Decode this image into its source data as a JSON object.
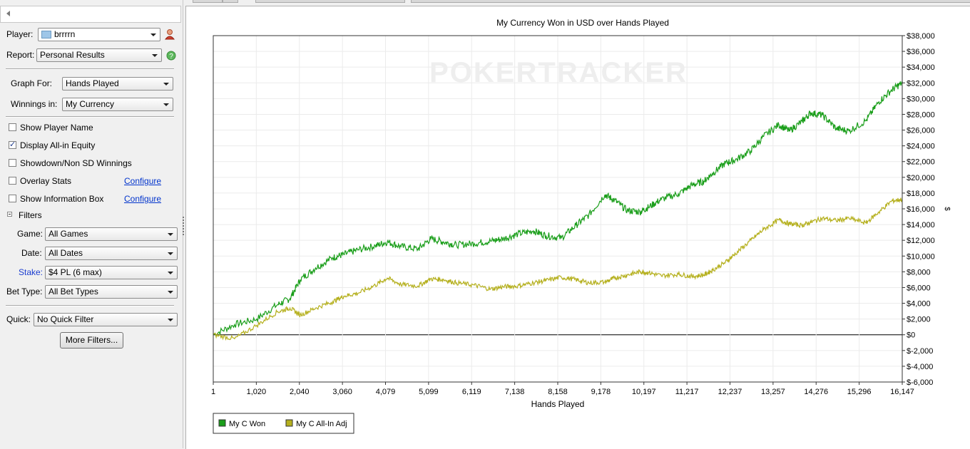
{
  "sidebar": {
    "player_label": "Player:",
    "player_value": "brrrrn",
    "report_label": "Report:",
    "report_value": "Personal Results",
    "graph_for_label": "Graph For:",
    "graph_for_value": "Hands Played",
    "winnings_in_label": "Winnings in:",
    "winnings_in_value": "My Currency",
    "options": [
      {
        "label": "Show Player Name",
        "checked": false
      },
      {
        "label": "Display All-in Equity",
        "checked": true
      },
      {
        "label": "Showdown/Non SD Winnings",
        "checked": false
      },
      {
        "label": "Overlay Stats",
        "checked": false,
        "link": "Configure"
      },
      {
        "label": "Show Information Box",
        "checked": false,
        "link": "Configure"
      }
    ],
    "filters_header": "Filters",
    "game_label": "Game:",
    "game_value": "All Games",
    "date_label": "Date:",
    "date_value": "All Dates",
    "stake_label": "Stake:",
    "stake_value": "$4 PL (6 max)",
    "bet_type_label": "Bet Type:",
    "bet_type_value": "All Bet Types",
    "quick_label": "Quick:",
    "quick_value": "No Quick Filter",
    "more_filters": "More Filters..."
  },
  "chart_data": {
    "type": "line",
    "title": "My Currency Won in USD over Hands Played",
    "xlabel": "Hands Played",
    "ylabel": "$",
    "watermark": "POKERTRACKER",
    "xlim": [
      1,
      16147
    ],
    "ylim": [
      -6000,
      38000
    ],
    "x_ticks": [
      "1",
      "1,020",
      "2,040",
      "3,060",
      "4,079",
      "5,099",
      "6,119",
      "7,138",
      "8,158",
      "9,178",
      "10,197",
      "11,217",
      "12,237",
      "13,257",
      "14,276",
      "15,296",
      "16,147"
    ],
    "y_ticks": [
      "$-6,000",
      "$-4,000",
      "$-2,000",
      "$0",
      "$2,000",
      "$4,000",
      "$6,000",
      "$8,000",
      "$10,000",
      "$12,000",
      "$14,000",
      "$16,000",
      "$18,000",
      "$20,000",
      "$22,000",
      "$24,000",
      "$26,000",
      "$28,000",
      "$30,000",
      "$32,000",
      "$34,000",
      "$36,000",
      "$38,000"
    ],
    "grid": true,
    "legend_position": "bottom-left",
    "x": [
      1,
      500,
      1020,
      1500,
      1800,
      2040,
      2400,
      2800,
      3060,
      3400,
      3800,
      4079,
      4400,
      4800,
      5099,
      5400,
      5700,
      6119,
      6500,
      6800,
      7138,
      7500,
      7800,
      8158,
      8500,
      8800,
      9178,
      9400,
      9700,
      10000,
      10197,
      10500,
      10900,
      11217,
      11500,
      11700,
      12000,
      12237,
      12600,
      12900,
      13257,
      13500,
      13800,
      14000,
      14276,
      14600,
      14900,
      15296,
      15600,
      15900,
      16147
    ],
    "series": [
      {
        "name": "My C Won",
        "color": "#1a9e1a",
        "values": [
          0,
          1300,
          2000,
          3800,
          4600,
          7000,
          8500,
          9800,
          10200,
          10800,
          11300,
          11800,
          11200,
          10900,
          12200,
          11800,
          11400,
          11600,
          11900,
          12200,
          12800,
          13200,
          12600,
          12300,
          13900,
          15200,
          17800,
          17100,
          15800,
          15600,
          16200,
          17200,
          17900,
          19000,
          19500,
          20500,
          21800,
          22200,
          23400,
          25200,
          26700,
          25900,
          27100,
          28200,
          27900,
          26200,
          25900,
          27200,
          29600,
          31100,
          32000
        ]
      },
      {
        "name": "My C All-In Adj",
        "color": "#b5b01e",
        "values": [
          0,
          -500,
          1200,
          2900,
          3400,
          2500,
          3400,
          4200,
          4900,
          5300,
          6300,
          7200,
          6400,
          6200,
          7100,
          7000,
          6600,
          6300,
          5800,
          6100,
          6200,
          6600,
          6900,
          7300,
          7000,
          6600,
          6700,
          7200,
          7600,
          8000,
          7900,
          7500,
          7700,
          7400,
          7600,
          8200,
          9200,
          10300,
          12000,
          13400,
          14600,
          14100,
          13900,
          14300,
          14800,
          14500,
          14800,
          14200,
          15600,
          17000,
          17200
        ]
      }
    ]
  }
}
